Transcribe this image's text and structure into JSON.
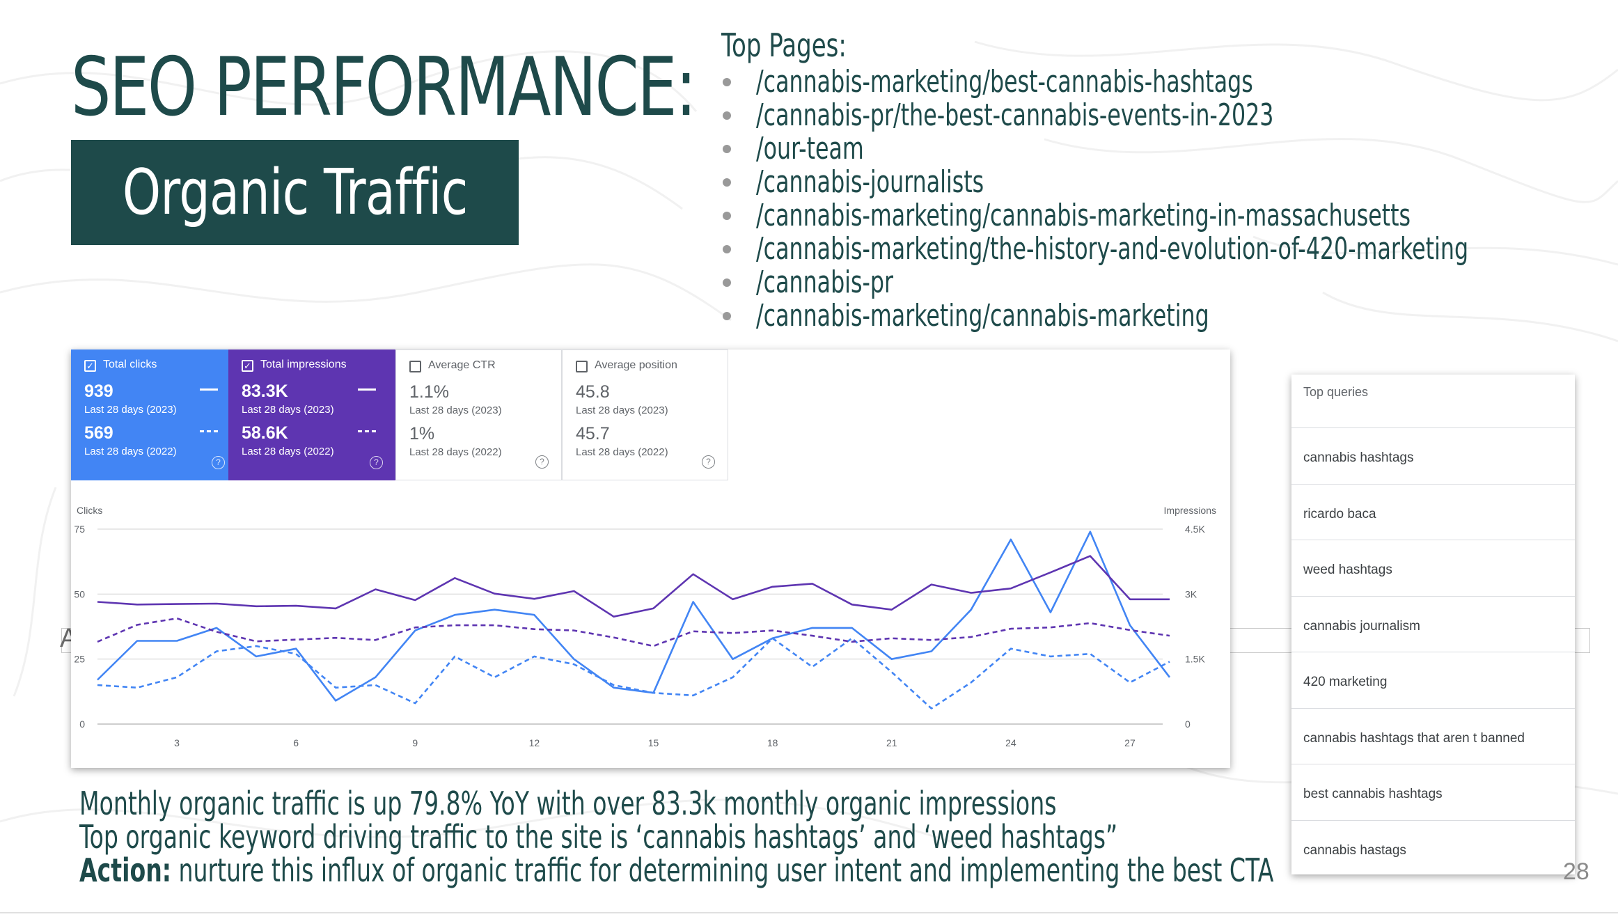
{
  "slide": {
    "title": "SEO PERFORMANCE:",
    "subtitle": "Organic Traffic",
    "page_number": "28",
    "ghost_letter": "A"
  },
  "top_pages": {
    "heading": "Top Pages:",
    "items": [
      "/cannabis-marketing/best-cannabis-hashtags",
      "/cannabis-pr/the-best-cannabis-events-in-2023",
      "/our-team",
      "/cannabis-journalists",
      "/cannabis-marketing/cannabis-marketing-in-massachusetts",
      "/cannabis-marketing/the-history-and-evolution-of-420-marketing",
      "/cannabis-pr",
      "/cannabis-marketing/cannabis-marketing"
    ]
  },
  "metrics": {
    "clicks": {
      "label": "Total clicks",
      "v1": "939",
      "l1": "Last 28 days (2023)",
      "v2": "569",
      "l2": "Last 28 days (2022)",
      "checked": true
    },
    "impressions": {
      "label": "Total impressions",
      "v1": "83.3K",
      "l1": "Last 28 days (2023)",
      "v2": "58.6K",
      "l2": "Last 28 days (2022)",
      "checked": true
    },
    "ctr": {
      "label": "Average CTR",
      "v1": "1.1%",
      "l1": "Last 28 days (2023)",
      "v2": "1%",
      "l2": "Last 28 days (2022)",
      "checked": false
    },
    "position": {
      "label": "Average position",
      "v1": "45.8",
      "l1": "Last 28 days (2023)",
      "v2": "45.7",
      "l2": "Last 28 days (2022)",
      "checked": false
    }
  },
  "chart_data": {
    "type": "line",
    "x": [
      1,
      2,
      3,
      4,
      5,
      6,
      7,
      8,
      9,
      10,
      11,
      12,
      13,
      14,
      15,
      16,
      17,
      18,
      19,
      20,
      21,
      22,
      23,
      24,
      25,
      26,
      27,
      28
    ],
    "x_ticks": [
      3,
      6,
      9,
      12,
      15,
      18,
      21,
      24,
      27
    ],
    "y_left_label": "Clicks",
    "y_left_ticks": [
      "75",
      "50",
      "25",
      "0"
    ],
    "y_left_range": [
      0,
      75
    ],
    "y_right_label": "Impressions",
    "y_right_ticks": [
      "4.5K",
      "3K",
      "1.5K",
      "0"
    ],
    "y_right_range": [
      0,
      4500
    ],
    "series": [
      {
        "axis": "left",
        "color": "#4285f4",
        "style": "solid",
        "values": [
          17,
          32,
          32,
          37,
          26,
          29,
          9,
          18,
          36,
          42,
          44,
          42,
          25,
          14,
          12,
          47,
          25,
          33,
          37,
          37,
          25,
          28,
          44,
          71,
          43,
          74,
          38,
          18
        ]
      },
      {
        "axis": "left",
        "color": "#4285f4",
        "style": "dashed",
        "values": [
          15,
          14,
          18,
          28,
          30,
          27,
          14,
          15,
          8,
          26,
          18,
          26,
          23,
          15,
          12,
          11,
          18,
          33,
          22,
          33,
          20,
          6,
          16,
          29,
          26,
          27,
          16,
          24
        ]
      },
      {
        "axis": "right",
        "color": "#5e35b1",
        "style": "solid",
        "values": [
          2820,
          2760,
          2770,
          2780,
          2720,
          2730,
          2670,
          3110,
          2860,
          3370,
          3010,
          2890,
          3070,
          2480,
          2670,
          3460,
          2880,
          3170,
          3240,
          2760,
          2640,
          3220,
          3030,
          3130,
          3500,
          3880,
          2880,
          2880
        ]
      },
      {
        "axis": "right",
        "color": "#5e35b1",
        "style": "dashed",
        "values": [
          1900,
          2290,
          2440,
          2130,
          1910,
          1950,
          1990,
          1940,
          2230,
          2280,
          2280,
          2190,
          2160,
          2000,
          1800,
          2140,
          2100,
          2160,
          2040,
          1900,
          1980,
          1940,
          2010,
          2200,
          2230,
          2330,
          2170,
          2040
        ]
      }
    ]
  },
  "queries": {
    "header": "Top queries",
    "items": [
      "cannabis hashtags",
      "ricardo baca",
      "weed hashtags",
      "cannabis journalism",
      "420 marketing",
      "cannabis hashtags that aren t banned",
      "best cannabis hashtags",
      "cannabis hastags"
    ]
  },
  "summary": {
    "line1": "Monthly organic traffic is up 79.8% YoY with over 83.3k monthly organic impressions",
    "line2": "Top organic keyword driving traffic to the site is ‘cannabis hashtags’ and ‘weed hashtags”",
    "action_label": "Action:",
    "action_text": " nurture this influx of organic traffic for determining user intent and implementing the best CTA"
  }
}
